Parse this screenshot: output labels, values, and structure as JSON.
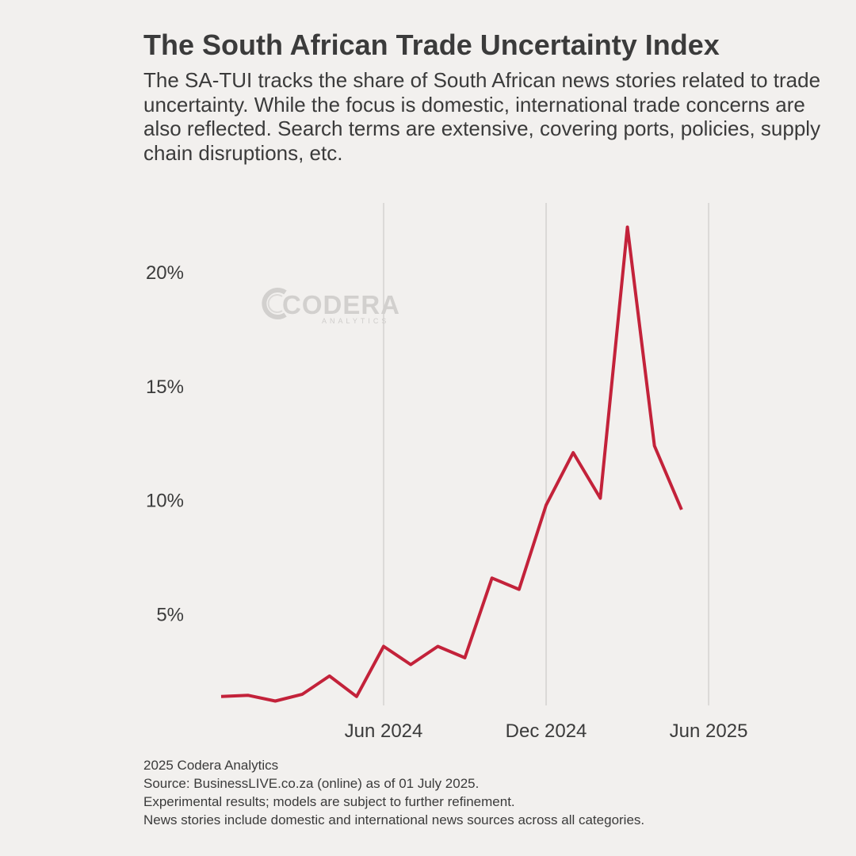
{
  "title": "The South African Trade Uncertainty Index",
  "subtitle": "The SA-TUI tracks the share of South African news stories related to trade uncertainty. While the focus is domestic, international trade concerns are also reflected. Search terms are extensive, covering ports, policies, supply chain disruptions, etc.",
  "watermark": {
    "name": "CODERA",
    "tagline": "ANALYTICS"
  },
  "footer": [
    "2025 Codera Analytics",
    "Source: BusinessLIVE.co.za (online) as of 01 July 2025.",
    "Experimental results; models are subject to further refinement.",
    "News stories include domestic and international news sources across all categories."
  ],
  "chart_data": {
    "type": "line",
    "x": [
      "2023-12",
      "2024-01",
      "2024-02",
      "2024-03",
      "2024-04",
      "2024-05",
      "2024-06",
      "2024-07",
      "2024-08",
      "2024-09",
      "2024-10",
      "2024-11",
      "2024-12",
      "2025-01",
      "2025-02",
      "2025-03",
      "2025-04",
      "2025-05",
      "2025-06"
    ],
    "series": [
      {
        "values": [
          1.4,
          1.45,
          1.2,
          1.5,
          2.3,
          1.4,
          3.6,
          2.8,
          3.6,
          3.1,
          6.6,
          6.1,
          9.8,
          12.1,
          10.1,
          22.0,
          12.4,
          9.6,
          null
        ]
      }
    ],
    "ylim": [
      0,
      22.6
    ],
    "yticks": [
      5,
      10,
      15,
      20
    ],
    "ytick_labels": [
      "5%",
      "10%",
      "15%",
      "20%"
    ],
    "xticks": [
      "2024-06",
      "2024-12",
      "2025-06"
    ],
    "xtick_labels": [
      "Jun 2024",
      "Dec 2024",
      "Jun 2025"
    ],
    "xlabel": "",
    "ylabel": "",
    "grid": "vertical",
    "line_color": "#c3223a",
    "grid_color": "#d4d2d0",
    "text_color": "#3b3b3b",
    "background": "#f2f0ee"
  }
}
